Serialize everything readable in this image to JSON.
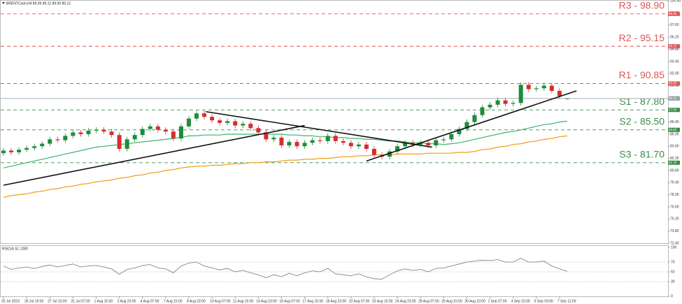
{
  "chart_data": {
    "type": "candlestick",
    "title": "BRENTCash,H4 89.09 89.12 89.00 89.12",
    "categories": [
      "25 Jul 2023",
      null,
      null,
      "26 Jul 15:00",
      null,
      null,
      "27 Jul 23:00",
      null,
      null,
      "31 Jul 07:00",
      null,
      null,
      "1 Aug 15:00",
      null,
      null,
      "2 Aug 23:00",
      null,
      null,
      "4 Aug 07:00",
      null,
      null,
      "7 Aug 15:00",
      null,
      null,
      "8 Aug 23:00",
      null,
      null,
      "10 Aug 07:00",
      null,
      null,
      "11 Aug 15:00",
      null,
      null,
      "14 Aug 23:00",
      null,
      null,
      "16 Aug 07:00",
      null,
      null,
      "17 Aug 15:00",
      null,
      null,
      "18 Aug 23:00",
      null,
      null,
      "22 Aug 07:00",
      null,
      null,
      "23 Aug 15:00",
      null,
      null,
      "24 Aug 23:00",
      null,
      null,
      "28 Aug 07:00",
      null,
      null,
      "29 Aug 15:00",
      null,
      null,
      "30 Aug 23:00",
      null,
      null,
      "1 Sep 07:00",
      null,
      null,
      "4 Sep 15:00",
      null,
      null,
      "6 Sep 03:00",
      null,
      null,
      "7 Sep 11:00",
      null
    ],
    "open": [
      82.8,
      83.1,
      82.9,
      83.2,
      83.4,
      83.6,
      83.9,
      84.4,
      84.3,
      84.8,
      85.2,
      85.0,
      85.4,
      85.5,
      85.3,
      84.9,
      83.3,
      84.4,
      84.9,
      85.6,
      85.9,
      85.5,
      85.3,
      84.5,
      85.9,
      86.8,
      87.4,
      87.0,
      86.6,
      86.3,
      86.5,
      86.0,
      86.2,
      85.7,
      85.2,
      84.4,
      84.6,
      83.7,
      84.1,
      83.6,
      84.0,
      84.3,
      84.2,
      84.8,
      84.2,
      84.0,
      83.6,
      83.8,
      83.3,
      82.6,
      82.4,
      83.0,
      83.6,
      84.0,
      83.8,
      84.0,
      83.7,
      84.3,
      84.4,
      85.0,
      85.6,
      86.4,
      87.2,
      88.1,
      88.4,
      88.9,
      88.5,
      88.6,
      90.7,
      90.2,
      90.3,
      90.6,
      90.0,
      89.09
    ],
    "high": [
      83.4,
      83.4,
      83.5,
      83.7,
      83.9,
      84.2,
      84.7,
      84.7,
      85.1,
      85.5,
      85.5,
      85.7,
      85.8,
      85.8,
      85.6,
      85.2,
      84.7,
      85.2,
      85.9,
      86.2,
      86.2,
      85.8,
      85.6,
      86.2,
      87.1,
      87.7,
      87.7,
      87.3,
      86.9,
      86.8,
      86.8,
      86.5,
      86.5,
      86.0,
      85.5,
      84.9,
      84.9,
      84.4,
      84.4,
      84.3,
      84.6,
      84.6,
      85.1,
      85.1,
      84.5,
      84.3,
      84.1,
      84.1,
      83.6,
      82.9,
      83.3,
      83.9,
      84.3,
      84.3,
      84.3,
      84.3,
      84.6,
      84.7,
      85.3,
      85.9,
      86.7,
      87.5,
      88.4,
      88.7,
      89.2,
      89.2,
      88.9,
      91.0,
      91.0,
      90.6,
      90.9,
      90.9,
      90.3,
      89.12
    ],
    "low": [
      82.5,
      82.6,
      82.6,
      82.9,
      83.1,
      83.3,
      83.6,
      84.0,
      84.0,
      84.5,
      84.7,
      84.7,
      85.1,
      85.0,
      84.6,
      83.0,
      83.0,
      84.1,
      84.6,
      85.3,
      85.2,
      85.0,
      84.2,
      84.2,
      85.6,
      86.5,
      86.7,
      86.3,
      86.0,
      86.0,
      85.7,
      85.7,
      85.4,
      84.9,
      84.1,
      84.1,
      83.4,
      83.4,
      83.3,
      83.3,
      83.7,
      83.9,
      83.9,
      83.9,
      83.7,
      83.3,
      83.3,
      83.0,
      82.3,
      82.1,
      82.1,
      82.7,
      83.3,
      83.5,
      83.5,
      83.4,
      83.4,
      84.0,
      84.1,
      84.7,
      85.3,
      86.1,
      86.9,
      87.8,
      88.1,
      88.2,
      88.2,
      88.3,
      89.9,
      89.9,
      90.0,
      89.7,
      89.1,
      89.0
    ],
    "close": [
      83.1,
      82.9,
      83.2,
      83.4,
      83.6,
      83.9,
      84.4,
      84.3,
      84.8,
      85.2,
      85.0,
      85.4,
      85.5,
      85.3,
      84.9,
      83.3,
      84.4,
      84.9,
      85.6,
      85.9,
      85.5,
      85.3,
      84.5,
      85.9,
      86.8,
      87.4,
      87.0,
      86.6,
      86.3,
      86.5,
      86.0,
      86.2,
      85.7,
      85.2,
      84.4,
      84.6,
      83.7,
      84.1,
      83.6,
      84.0,
      84.3,
      84.2,
      84.8,
      84.2,
      84.0,
      83.6,
      83.8,
      83.3,
      82.6,
      82.4,
      83.0,
      83.6,
      84.0,
      83.8,
      84.0,
      83.7,
      84.3,
      84.4,
      85.0,
      85.6,
      86.4,
      87.2,
      88.1,
      88.4,
      88.9,
      88.5,
      88.6,
      90.7,
      90.2,
      90.3,
      90.6,
      90.0,
      89.4,
      89.12
    ],
    "up_color": "#1e8c3a",
    "down_color": "#d32f2f",
    "series": [
      {
        "color": "#3cb371",
        "values": [
          81.1,
          81.3,
          81.5,
          81.7,
          81.9,
          82.1,
          82.3,
          82.5,
          82.7,
          82.9,
          83.1,
          83.3,
          83.5,
          83.6,
          83.7,
          83.8,
          83.9,
          84.0,
          84.1,
          84.2,
          84.3,
          84.4,
          84.5,
          84.6,
          84.8,
          84.8,
          84.9,
          84.9,
          84.9,
          85.0,
          85.0,
          85.0,
          85.0,
          85.0,
          85.0,
          85.0,
          85.0,
          84.9,
          84.9,
          84.8,
          84.8,
          84.7,
          84.7,
          84.6,
          84.6,
          84.5,
          84.5,
          84.4,
          84.4,
          84.3,
          84.2,
          84.2,
          84.1,
          84.0,
          84.0,
          83.9,
          83.9,
          83.8,
          83.9,
          84.0,
          84.2,
          84.4,
          84.6,
          84.8,
          85.0,
          85.2,
          85.3,
          85.5,
          85.7,
          85.9,
          86.1,
          86.2,
          86.4,
          86.5
        ]
      },
      {
        "color": "#f39c12",
        "values": [
          77.7,
          77.9,
          78.0,
          78.1,
          78.3,
          78.4,
          78.6,
          78.7,
          78.9,
          79.0,
          79.2,
          79.3,
          79.5,
          79.6,
          79.7,
          79.9,
          80.0,
          80.2,
          80.3,
          80.5,
          80.6,
          80.8,
          80.9,
          81.1,
          81.2,
          81.3,
          81.3,
          81.4,
          81.4,
          81.5,
          81.6,
          81.6,
          81.7,
          81.7,
          81.8,
          81.8,
          81.9,
          82.0,
          82.0,
          82.1,
          82.1,
          82.2,
          82.2,
          82.3,
          82.4,
          82.4,
          82.5,
          82.5,
          82.6,
          82.6,
          82.6,
          82.7,
          82.7,
          82.7,
          82.7,
          82.8,
          82.8,
          82.8,
          82.8,
          82.9,
          82.9,
          83.0,
          83.2,
          83.3,
          83.5,
          83.6,
          83.8,
          83.9,
          84.1,
          84.2,
          84.4,
          84.5,
          84.7,
          84.8
        ]
      }
    ],
    "ylim": [
      72.4,
      100.5
    ],
    "yticks": [
      {
        "value": 72.4,
        "label": "72.40"
      },
      {
        "value": 73.8,
        "label": "73.80"
      },
      {
        "value": 75.2,
        "label": "75.20"
      },
      {
        "value": 76.6,
        "label": "76.60"
      },
      {
        "value": 78.0,
        "label": "78.00"
      },
      {
        "value": 79.4,
        "label": "79.40"
      },
      {
        "value": 80.8,
        "label": "80.80"
      },
      {
        "value": 82.2,
        "label": "82.20"
      },
      {
        "value": 83.6,
        "label": "83.60"
      },
      {
        "value": 85.0,
        "label": "85.00"
      },
      {
        "value": 86.4,
        "label": "86.40"
      },
      {
        "value": 87.8,
        "label": "87.80"
      },
      {
        "value": 89.2,
        "label": "89.20"
      },
      {
        "value": 90.6,
        "label": "90.60"
      },
      {
        "value": 92.0,
        "label": "92.00"
      },
      {
        "value": 93.4,
        "label": "93.40"
      },
      {
        "value": 94.8,
        "label": "94.80"
      },
      {
        "value": 96.2,
        "label": "96.20"
      },
      {
        "value": 97.6,
        "label": "97.60"
      },
      {
        "value": 99.0,
        "label": "99.00"
      },
      {
        "value": 100.4,
        "label": "100.40"
      }
    ],
    "levels": [
      {
        "label": "R3 - 98.90",
        "value": 98.9,
        "tag": "98.90",
        "color": "#e05555"
      },
      {
        "label": "R2 - 95.15",
        "value": 95.15,
        "tag": "95.15",
        "color": "#e05555"
      },
      {
        "label": "R1 - 90.85",
        "value": 90.85,
        "tag": "90.85",
        "color": "#e05555"
      },
      {
        "label": "S1 - 87.80",
        "value": 87.8,
        "tag": "87.80",
        "color": "#3d8b4a"
      },
      {
        "label": "S2 - 85.50",
        "value": 85.5,
        "tag": "85.50",
        "color": "#3d8b4a"
      },
      {
        "label": "S3 - 81.70",
        "value": 81.7,
        "tag": "81.70",
        "color": "#3d8b4a"
      }
    ],
    "price_line": {
      "value": 89.12,
      "tag": "89.12",
      "color": "#9aa0a6"
    },
    "trendlines": [
      {
        "from": [
          0,
          79.1
        ],
        "to": [
          39,
          86.0
        ]
      },
      {
        "from": [
          26.2,
          87.6
        ],
        "to": [
          55.5,
          83.5
        ]
      },
      {
        "from": [
          47,
          81.9
        ],
        "to": [
          74.2,
          90.0
        ]
      }
    ],
    "rsi": {
      "title": "RSI(14) 51.1280",
      "color": "#777777",
      "values": [
        62,
        55,
        58,
        60,
        57,
        61,
        64,
        60,
        63,
        66,
        60,
        62,
        63,
        60,
        56,
        45,
        55,
        58,
        63,
        65,
        58,
        56,
        48,
        62,
        68,
        70,
        62,
        58,
        54,
        57,
        50,
        53,
        48,
        44,
        38,
        44,
        40,
        47,
        42,
        48,
        52,
        50,
        57,
        46,
        44,
        42,
        46,
        40,
        36,
        35,
        44,
        52,
        56,
        53,
        55,
        50,
        57,
        58,
        62,
        66,
        70,
        72,
        74,
        73,
        75,
        70,
        70,
        78,
        70,
        70,
        72,
        62,
        56,
        51.128
      ],
      "ylim": [
        0,
        100
      ],
      "yticks": [
        0,
        30,
        50,
        70,
        100
      ]
    }
  }
}
